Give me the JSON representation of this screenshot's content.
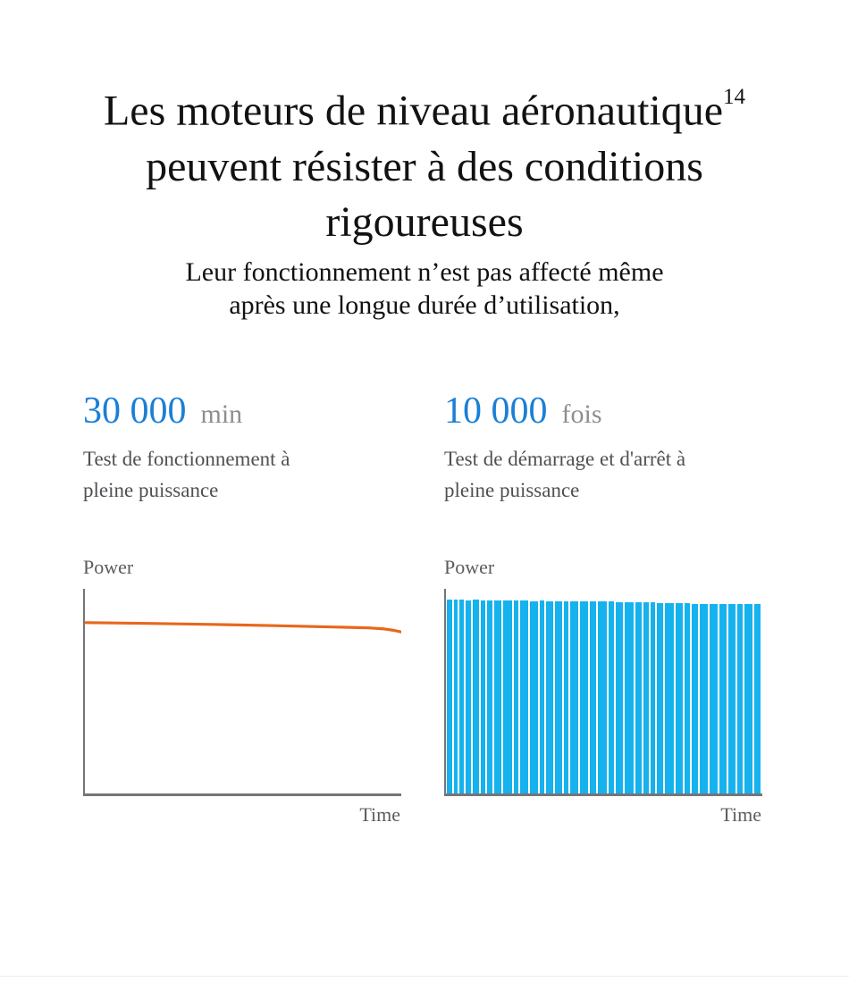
{
  "header": {
    "title_lines": [
      "Les moteurs de niveau aéronautique",
      "peuvent résister à des conditions",
      "rigoureuses"
    ],
    "title_superscript": "14",
    "subtitle_lines": [
      "Leur fonctionnement n’est pas affecté même",
      "après une longue durée d’utilisation,"
    ]
  },
  "stats": [
    {
      "value": "30 000",
      "unit": "min",
      "lines": [
        "Test de fonctionnement à",
        "pleine puissance"
      ]
    },
    {
      "value": "10 000",
      "unit": "fois",
      "lines": [
        "Test de démarrage et d'arrêt à",
        "pleine puissance"
      ]
    }
  ],
  "colors": {
    "accent_blue": "#1a7fd6",
    "bar_blue": "#16b2ee",
    "line_orange": "#e8671c",
    "axis_gray": "#747578",
    "title_color": "#121212",
    "text_gray": "#4f5054",
    "label_gray": "#5b5c60",
    "unit_gray": "#8d8e92",
    "divider_gray": "#ededf0"
  },
  "chart_data": [
    {
      "type": "line",
      "title": "Test de fonctionnement à pleine puissance",
      "xlabel": "Time",
      "ylabel": "Power",
      "color": "#e8671c",
      "x_range": [
        0,
        1
      ],
      "y_range": [
        0,
        1
      ],
      "grid": false,
      "legend": "none",
      "note": "Power stays nearly constant over full test duration, tiny dip at very end",
      "points": [
        [
          0,
          0.835
        ],
        [
          0.2,
          0.831
        ],
        [
          0.4,
          0.826
        ],
        [
          0.6,
          0.82
        ],
        [
          0.8,
          0.813
        ],
        [
          0.9,
          0.809
        ],
        [
          0.95,
          0.804
        ],
        [
          0.98,
          0.797
        ],
        [
          1,
          0.79
        ]
      ]
    },
    {
      "type": "bar",
      "title": "Test de démarrage et d'arrêt à pleine puissance",
      "xlabel": "Time",
      "ylabel": "Power",
      "color": "#16b2ee",
      "grid": false,
      "legend": "none",
      "note": "Repeated full-power on/off cycles; bar heights near-constant, declining slightly to the right",
      "bars_format": "[relative_width, height_fraction_of_plot]",
      "bars": [
        [
          6,
          0.945
        ],
        [
          5,
          0.944
        ],
        [
          5,
          0.945
        ],
        [
          6,
          0.943
        ],
        [
          8,
          0.944
        ],
        [
          5,
          0.942
        ],
        [
          6,
          0.943
        ],
        [
          9,
          0.941
        ],
        [
          10,
          0.942
        ],
        [
          6,
          0.94
        ],
        [
          9,
          0.941
        ],
        [
          10,
          0.939
        ],
        [
          5,
          0.94
        ],
        [
          8,
          0.938
        ],
        [
          9,
          0.939
        ],
        [
          5,
          0.937
        ],
        [
          10,
          0.938
        ],
        [
          9,
          0.936
        ],
        [
          8,
          0.937
        ],
        [
          10,
          0.935
        ],
        [
          6,
          0.936
        ],
        [
          9,
          0.934
        ],
        [
          10,
          0.933
        ],
        [
          8,
          0.934
        ],
        [
          6,
          0.932
        ],
        [
          5,
          0.931
        ],
        [
          8,
          0.93
        ],
        [
          10,
          0.929
        ],
        [
          9,
          0.928
        ],
        [
          6,
          0.927
        ],
        [
          8,
          0.926
        ],
        [
          9,
          0.925
        ],
        [
          10,
          0.925
        ],
        [
          8,
          0.924
        ],
        [
          9,
          0.923
        ],
        [
          6,
          0.922
        ],
        [
          9,
          0.923
        ],
        [
          8,
          0.922
        ]
      ]
    }
  ]
}
